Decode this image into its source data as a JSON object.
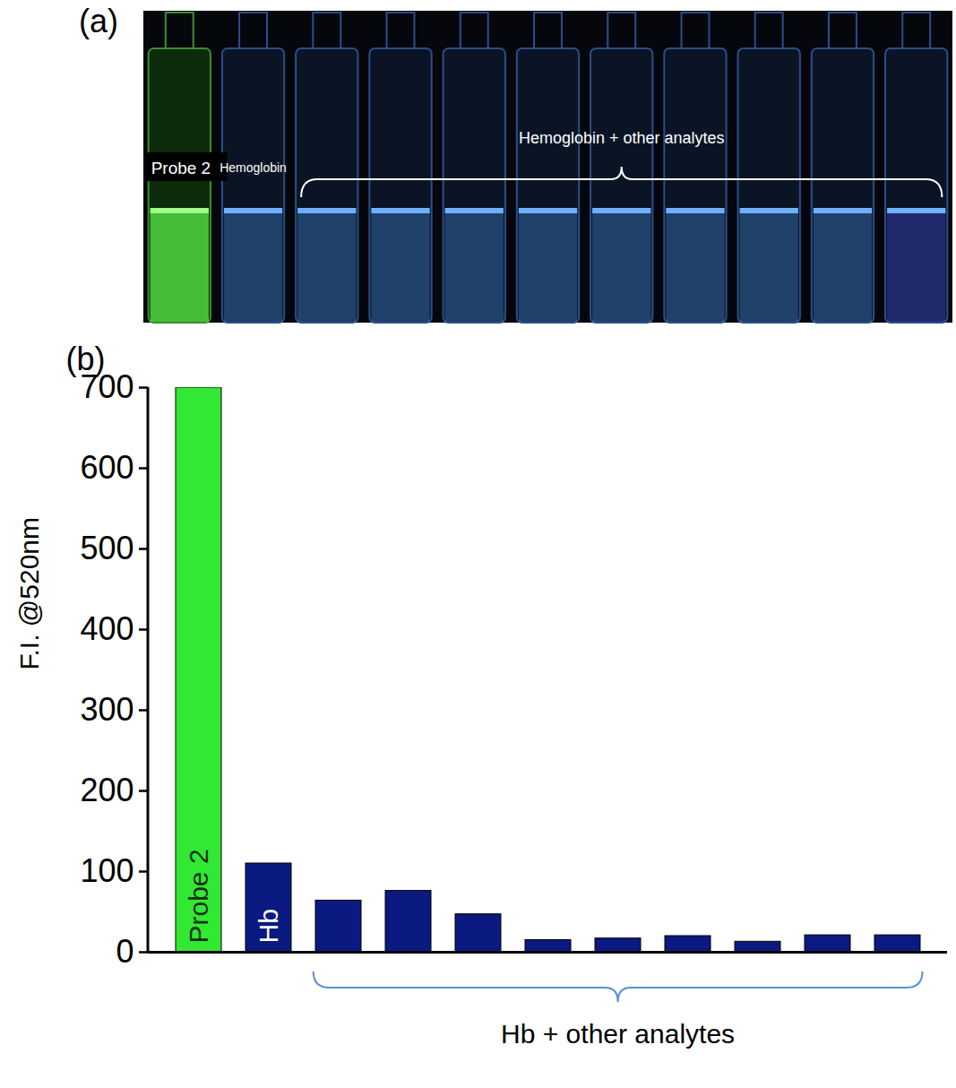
{
  "photo": {
    "panel_label": "(a)",
    "labels": [
      "Probe 2",
      "Hemoglobin"
    ],
    "group_label": "Hemoglobin + other analytes"
  },
  "chart_data": {
    "type": "bar",
    "panel_label": "(b)",
    "y_label": "F.I. @520nm",
    "categories": [
      "Probe 2",
      "Hb",
      null,
      null,
      null,
      null,
      null,
      null,
      null,
      null,
      null
    ],
    "values": [
      700,
      110,
      64,
      76,
      47,
      15,
      17,
      20,
      13,
      21,
      21
    ],
    "colors": [
      "#33e833",
      "#0b1a80",
      "#0b1a80",
      "#0b1a80",
      "#0b1a80",
      "#0b1a80",
      "#0b1a80",
      "#0b1a80",
      "#0b1a80",
      "#0b1a80",
      "#0b1a80"
    ],
    "ylim": [
      0,
      700
    ],
    "yticks": [
      0,
      100,
      200,
      300,
      400,
      500,
      600,
      700
    ],
    "grid": false,
    "tick_labels": "y",
    "annotations": [
      "Hb + other analytes"
    ]
  }
}
